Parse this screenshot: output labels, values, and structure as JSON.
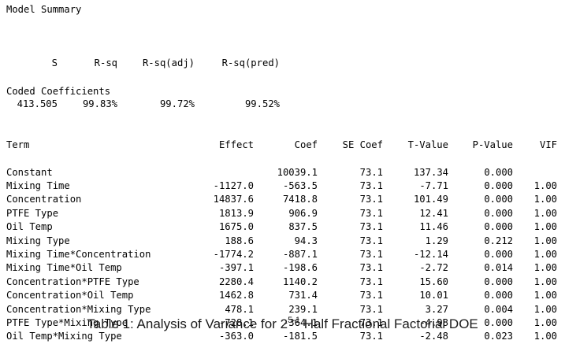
{
  "model_summary": {
    "heading": "Model Summary",
    "columns": [
      "S",
      "R-sq",
      "R-sq(adj)",
      "R-sq(pred)"
    ],
    "values": [
      "413.505",
      "99.83%",
      "99.72%",
      "99.52%"
    ]
  },
  "coded_coefficients": {
    "heading": "Coded Coefficients",
    "columns": [
      "Term",
      "Effect",
      "Coef",
      "SE Coef",
      "T-Value",
      "P-Value",
      "VIF"
    ],
    "rows": [
      [
        "Constant",
        "",
        "10039.1",
        "73.1",
        "137.34",
        "0.000",
        ""
      ],
      [
        "Mixing Time",
        "-1127.0",
        "-563.5",
        "73.1",
        "-7.71",
        "0.000",
        "1.00"
      ],
      [
        "Concentration",
        "14837.6",
        "7418.8",
        "73.1",
        "101.49",
        "0.000",
        "1.00"
      ],
      [
        "PTFE Type",
        "1813.9",
        "906.9",
        "73.1",
        "12.41",
        "0.000",
        "1.00"
      ],
      [
        "Oil Temp",
        "1675.0",
        "837.5",
        "73.1",
        "11.46",
        "0.000",
        "1.00"
      ],
      [
        "Mixing Type",
        "188.6",
        "94.3",
        "73.1",
        "1.29",
        "0.212",
        "1.00"
      ],
      [
        "Mixing Time*Concentration",
        "-1774.2",
        "-887.1",
        "73.1",
        "-12.14",
        "0.000",
        "1.00"
      ],
      [
        "Mixing Time*Oil Temp",
        "-397.1",
        "-198.6",
        "73.1",
        "-2.72",
        "0.014",
        "1.00"
      ],
      [
        "Concentration*PTFE Type",
        "2280.4",
        "1140.2",
        "73.1",
        "15.60",
        "0.000",
        "1.00"
      ],
      [
        "Concentration*Oil Temp",
        "1462.8",
        "731.4",
        "73.1",
        "10.01",
        "0.000",
        "1.00"
      ],
      [
        "Concentration*Mixing Type",
        "478.1",
        "239.1",
        "73.1",
        "3.27",
        "0.004",
        "1.00"
      ],
      [
        "PTFE Type*Mixing Type",
        "-728.1",
        "-364.1",
        "73.1",
        "-4.98",
        "0.000",
        "1.00"
      ],
      [
        "Oil Temp*Mixing Type",
        "-363.0",
        "-181.5",
        "73.1",
        "-2.48",
        "0.023",
        "1.00"
      ]
    ]
  },
  "caption": {
    "prefix": "Table 1: Analysis of Variance for 2",
    "superscript": "5-1",
    "suffix": " Half Fractional Factorial DOE"
  }
}
